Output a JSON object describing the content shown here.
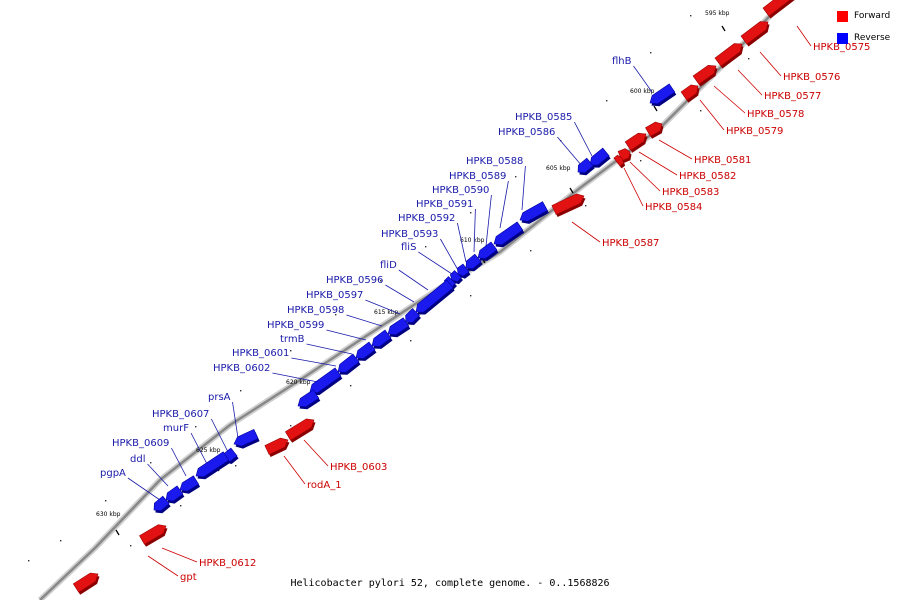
{
  "caption": "Helicobacter pylori 52, complete genome. - 0..1568826",
  "legend": [
    {
      "label": "Forward",
      "color": "#ff0000"
    },
    {
      "label": "Reverse",
      "color": "#0000ff"
    }
  ],
  "colors": {
    "forward": "#e31212",
    "reverse": "#1a1aee",
    "forward_label": "#cc0000",
    "reverse_label": "#1a1aaa",
    "backbone": "#888888"
  },
  "ticks": [
    {
      "label": "595 kbp"
    },
    {
      "label": "600 kbp"
    },
    {
      "label": "605 kbp"
    },
    {
      "label": "610 kbp"
    },
    {
      "label": "615 kbp"
    },
    {
      "label": "620 kbp"
    },
    {
      "label": "625 kbp"
    },
    {
      "label": "630 kbp"
    }
  ],
  "forward_genes": [
    "HPKB_0575",
    "HPKB_0576",
    "HPKB_0577",
    "HPKB_0578",
    "HPKB_0579",
    "HPKB_0581",
    "HPKB_0582",
    "HPKB_0583",
    "HPKB_0584",
    "HPKB_0587",
    "HPKB_0603",
    "rodA_1",
    "HPKB_0612",
    "gpt"
  ],
  "reverse_genes": [
    "flhB",
    "HPKB_0585",
    "HPKB_0586",
    "HPKB_0588",
    "HPKB_0589",
    "HPKB_0590",
    "HPKB_0591",
    "HPKB_0592",
    "HPKB_0593",
    "fliS",
    "fliD",
    "HPKB_0596",
    "HPKB_0597",
    "HPKB_0598",
    "HPKB_0599",
    "trmB",
    "HPKB_0601",
    "HPKB_0602",
    "prsA",
    "HPKB_0607",
    "murF",
    "HPKB_0609",
    "ddl",
    "pgpA"
  ]
}
